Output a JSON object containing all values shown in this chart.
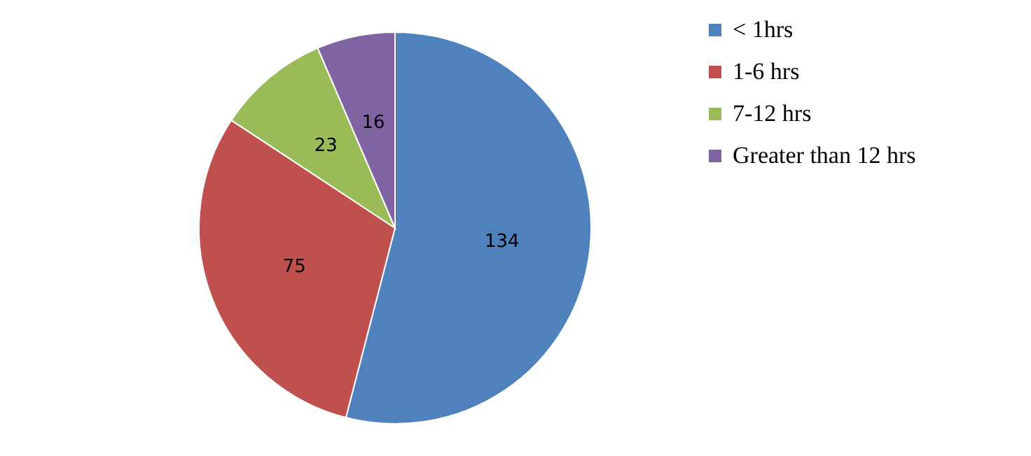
{
  "chart_data": {
    "type": "pie",
    "categories": [
      "< 1hrs",
      "1-6 hrs",
      "7-12 hrs",
      "Greater than 12 hrs"
    ],
    "values": [
      134,
      75,
      23,
      16
    ],
    "colors": [
      "#4f81bd",
      "#c0504d",
      "#9bbb59",
      "#8064a2"
    ],
    "data_labels": true,
    "legend": "right"
  }
}
